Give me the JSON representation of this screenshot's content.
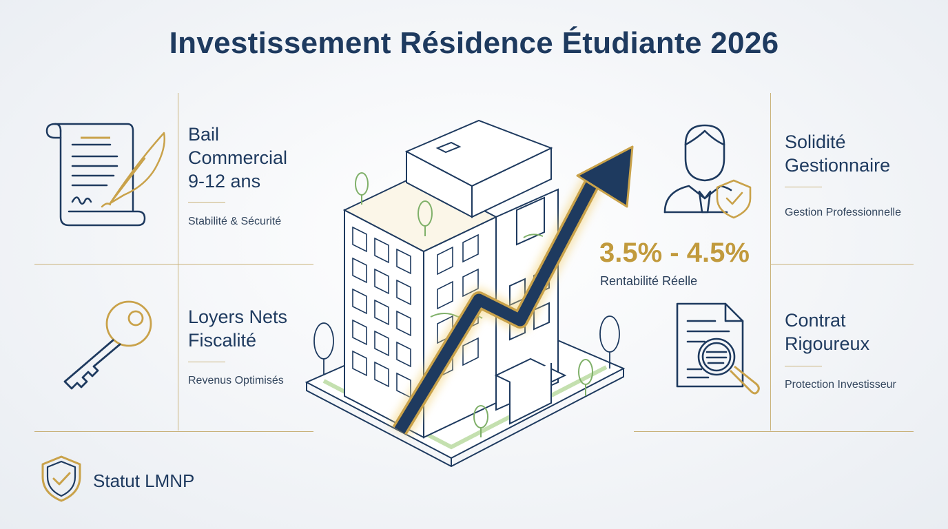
{
  "title": "Investissement Résidence Étudiante 2026",
  "features": {
    "bail": {
      "title_lines": [
        "Bail",
        "Commercial",
        "9-12 ans"
      ],
      "subtitle": "Stabilité & Sécurité",
      "icon": "contract-scroll-quill-icon"
    },
    "loyers": {
      "title_lines": [
        "Loyers Nets",
        "Fiscalité"
      ],
      "subtitle": "Revenus Optimisés",
      "icon": "key-icon"
    },
    "solidite": {
      "title_lines": [
        "Solidité",
        "Gestionnaire"
      ],
      "subtitle": "Gestion Professionnelle",
      "icon": "manager-shield-icon"
    },
    "contrat": {
      "title_lines": [
        "Contrat",
        "Rigoureux"
      ],
      "subtitle": "Protection Investisseur",
      "icon": "document-magnifier-icon"
    }
  },
  "kpi": {
    "value": "3.5% - 4.5%",
    "label": "Rentabilité Réelle"
  },
  "status": {
    "label": "Statut LMNP",
    "icon": "shield-check-icon"
  },
  "illustration": {
    "icon": "building-growth-arrow-icon"
  },
  "colors": {
    "navy": "#1e3a5f",
    "gold": "#c9a24a",
    "green": "#7fb069"
  }
}
